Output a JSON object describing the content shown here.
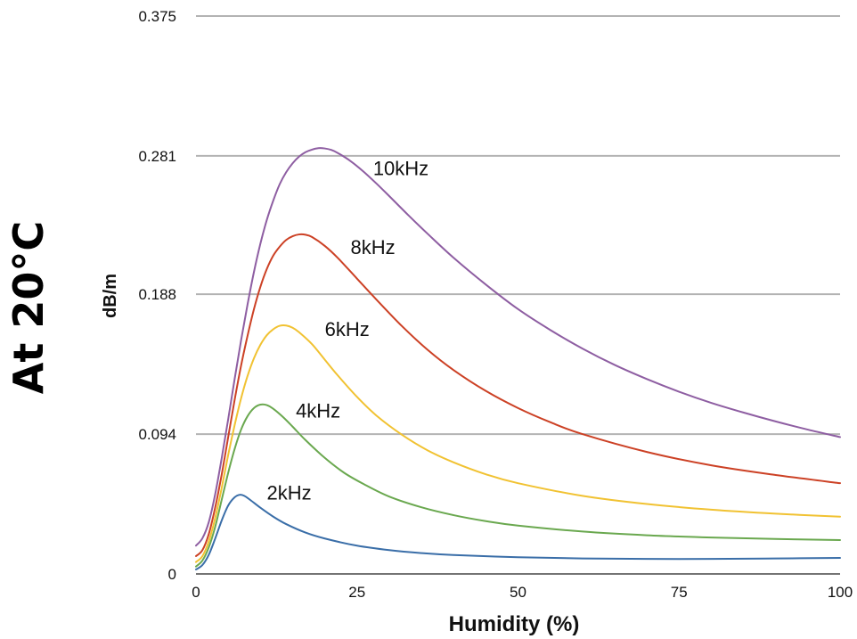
{
  "chart_data": {
    "type": "line",
    "side_title": "At 20°C",
    "xlabel": "Humidity (%)",
    "ylabel": "dB/m",
    "xlim": [
      0,
      100
    ],
    "ylim": [
      0,
      0.375
    ],
    "x_ticks": [
      {
        "value": 0,
        "label": "0"
      },
      {
        "value": 25,
        "label": "25"
      },
      {
        "value": 50,
        "label": "50"
      },
      {
        "value": 75,
        "label": "75"
      },
      {
        "value": 100,
        "label": "100"
      }
    ],
    "y_ticks": [
      {
        "value": 0,
        "label": "0"
      },
      {
        "value": 0.094,
        "label": "0.094"
      },
      {
        "value": 0.188,
        "label": "0.188"
      },
      {
        "value": 0.281,
        "label": "0.281"
      },
      {
        "value": 0.375,
        "label": "0.375"
      }
    ],
    "grid": true,
    "legend": "inline labels",
    "series": [
      {
        "name": "2kHz",
        "color": "#3a6ea8",
        "label_at": {
          "x": 11,
          "y": 0.05
        },
        "points": [
          [
            0,
            0.003
          ],
          [
            1,
            0.006
          ],
          [
            2,
            0.013
          ],
          [
            3,
            0.024
          ],
          [
            4,
            0.036
          ],
          [
            5,
            0.046
          ],
          [
            6,
            0.0515
          ],
          [
            6.8,
            0.0532
          ],
          [
            7.5,
            0.0525
          ],
          [
            8.5,
            0.0495
          ],
          [
            10,
            0.0445
          ],
          [
            12,
            0.0385
          ],
          [
            14,
            0.0335
          ],
          [
            17,
            0.0278
          ],
          [
            20,
            0.0238
          ],
          [
            25,
            0.019
          ],
          [
            30,
            0.016
          ],
          [
            35,
            0.014
          ],
          [
            40,
            0.0127
          ],
          [
            50,
            0.0112
          ],
          [
            60,
            0.0104
          ],
          [
            70,
            0.0101
          ],
          [
            80,
            0.0101
          ],
          [
            90,
            0.0104
          ],
          [
            100,
            0.0108
          ]
        ]
      },
      {
        "name": "4kHz",
        "color": "#6aa84f",
        "label_at": {
          "x": 15.5,
          "y": 0.105
        },
        "points": [
          [
            0,
            0.005
          ],
          [
            1,
            0.009
          ],
          [
            2,
            0.018
          ],
          [
            3,
            0.032
          ],
          [
            4,
            0.05
          ],
          [
            5,
            0.068
          ],
          [
            6,
            0.084
          ],
          [
            7,
            0.097
          ],
          [
            8,
            0.106
          ],
          [
            9,
            0.1115
          ],
          [
            10,
            0.1138
          ],
          [
            11,
            0.1135
          ],
          [
            12,
            0.111
          ],
          [
            13.5,
            0.1055
          ],
          [
            15,
            0.099
          ],
          [
            17,
            0.09
          ],
          [
            20,
            0.078
          ],
          [
            23,
            0.068
          ],
          [
            26,
            0.0605
          ],
          [
            30,
            0.052
          ],
          [
            35,
            0.0448
          ],
          [
            40,
            0.0395
          ],
          [
            45,
            0.0355
          ],
          [
            50,
            0.0325
          ],
          [
            60,
            0.0285
          ],
          [
            70,
            0.026
          ],
          [
            80,
            0.0245
          ],
          [
            90,
            0.0235
          ],
          [
            100,
            0.0228
          ]
        ]
      },
      {
        "name": "6kHz",
        "color": "#f1c232",
        "label_at": {
          "x": 20,
          "y": 0.16
        },
        "points": [
          [
            0,
            0.008
          ],
          [
            1,
            0.012
          ],
          [
            2,
            0.022
          ],
          [
            3,
            0.038
          ],
          [
            4,
            0.058
          ],
          [
            5,
            0.08
          ],
          [
            6,
            0.1
          ],
          [
            7,
            0.118
          ],
          [
            8,
            0.133
          ],
          [
            9,
            0.145
          ],
          [
            10,
            0.154
          ],
          [
            11,
            0.1605
          ],
          [
            12,
            0.1645
          ],
          [
            13,
            0.1668
          ],
          [
            14,
            0.167
          ],
          [
            15,
            0.1655
          ],
          [
            16,
            0.1625
          ],
          [
            18,
            0.1545
          ],
          [
            20,
            0.144
          ],
          [
            22,
            0.1335
          ],
          [
            25,
            0.119
          ],
          [
            28,
            0.1065
          ],
          [
            32,
            0.0935
          ],
          [
            36,
            0.083
          ],
          [
            40,
            0.075
          ],
          [
            45,
            0.067
          ],
          [
            50,
            0.061
          ],
          [
            60,
            0.0525
          ],
          [
            70,
            0.047
          ],
          [
            80,
            0.0432
          ],
          [
            90,
            0.0405
          ],
          [
            100,
            0.0385
          ]
        ]
      },
      {
        "name": "8kHz",
        "color": "#cc4125",
        "label_at": {
          "x": 24,
          "y": 0.215
        },
        "points": [
          [
            0,
            0.012
          ],
          [
            1,
            0.016
          ],
          [
            2,
            0.027
          ],
          [
            3,
            0.045
          ],
          [
            4,
            0.067
          ],
          [
            5,
            0.092
          ],
          [
            6,
            0.117
          ],
          [
            7,
            0.14
          ],
          [
            8,
            0.16
          ],
          [
            9,
            0.178
          ],
          [
            10,
            0.193
          ],
          [
            11,
            0.205
          ],
          [
            12,
            0.214
          ],
          [
            13,
            0.22
          ],
          [
            14,
            0.2245
          ],
          [
            15,
            0.227
          ],
          [
            16,
            0.2282
          ],
          [
            17,
            0.228
          ],
          [
            18,
            0.2265
          ],
          [
            20,
            0.2205
          ],
          [
            22,
            0.2125
          ],
          [
            25,
            0.1985
          ],
          [
            28,
            0.1845
          ],
          [
            32,
            0.1665
          ],
          [
            36,
            0.1505
          ],
          [
            40,
            0.137
          ],
          [
            45,
            0.123
          ],
          [
            50,
            0.1115
          ],
          [
            55,
            0.102
          ],
          [
            60,
            0.094
          ],
          [
            70,
            0.082
          ],
          [
            80,
            0.073
          ],
          [
            90,
            0.0665
          ],
          [
            100,
            0.061
          ]
        ]
      },
      {
        "name": "10kHz",
        "color": "#8e5ea2",
        "label_at": {
          "x": 27.5,
          "y": 0.268
        },
        "points": [
          [
            0,
            0.019
          ],
          [
            1,
            0.024
          ],
          [
            2,
            0.035
          ],
          [
            3,
            0.054
          ],
          [
            4,
            0.078
          ],
          [
            5,
            0.104
          ],
          [
            6,
            0.131
          ],
          [
            7,
            0.157
          ],
          [
            8,
            0.181
          ],
          [
            9,
            0.203
          ],
          [
            10,
            0.222
          ],
          [
            11,
            0.238
          ],
          [
            12,
            0.251
          ],
          [
            13,
            0.262
          ],
          [
            14,
            0.27
          ],
          [
            15,
            0.276
          ],
          [
            16,
            0.2805
          ],
          [
            17,
            0.2835
          ],
          [
            18,
            0.2852
          ],
          [
            19,
            0.2862
          ],
          [
            20,
            0.286
          ],
          [
            21,
            0.285
          ],
          [
            22,
            0.283
          ],
          [
            24,
            0.2775
          ],
          [
            26,
            0.2705
          ],
          [
            28,
            0.2625
          ],
          [
            30,
            0.254
          ],
          [
            33,
            0.241
          ],
          [
            36,
            0.2285
          ],
          [
            40,
            0.2125
          ],
          [
            45,
            0.1945
          ],
          [
            50,
            0.178
          ],
          [
            55,
            0.164
          ],
          [
            60,
            0.1515
          ],
          [
            65,
            0.1405
          ],
          [
            70,
            0.131
          ],
          [
            75,
            0.1225
          ],
          [
            80,
            0.115
          ],
          [
            85,
            0.1085
          ],
          [
            90,
            0.1025
          ],
          [
            95,
            0.097
          ],
          [
            100,
            0.092
          ]
        ]
      }
    ]
  }
}
